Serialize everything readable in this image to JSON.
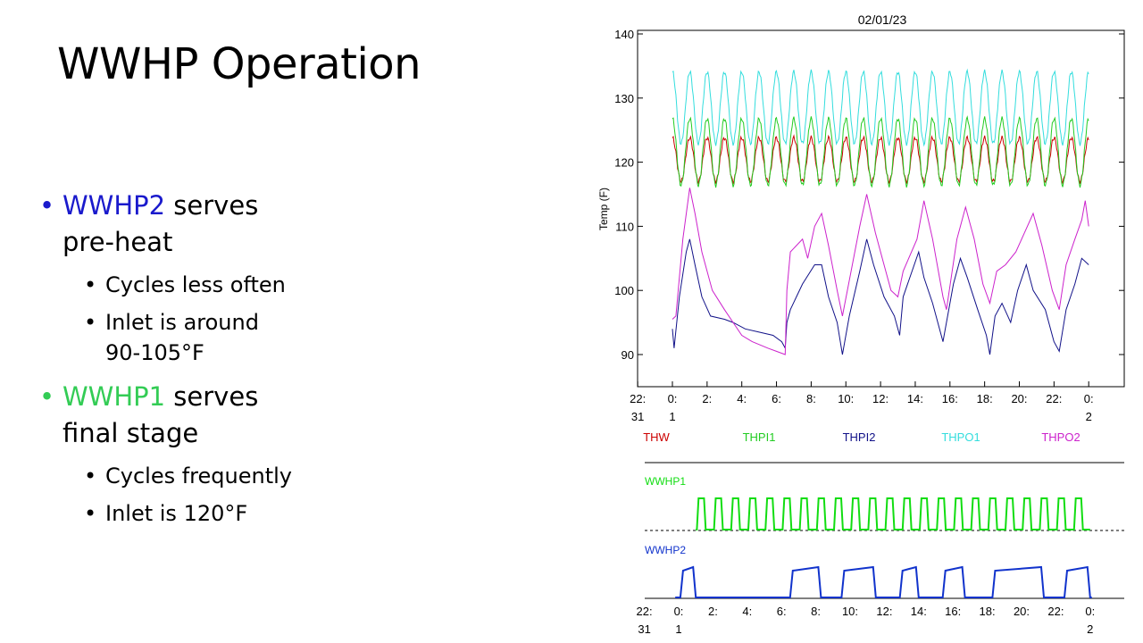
{
  "slide": {
    "title": "WWHP Operation",
    "bullets": [
      {
        "highlight": "WWHP2",
        "highlight_color": "#1a1acc",
        "text_line1": " serves",
        "text_line2": "pre-heat",
        "subs": [
          "Cycles less often",
          "Inlet is around",
          "90-105°F"
        ]
      },
      {
        "highlight": "WWHP1",
        "highlight_color": "#33cc55",
        "text_line1": " serves",
        "text_line2": "final stage",
        "subs": [
          "Cycles frequently",
          "Inlet is 120°F"
        ]
      }
    ]
  },
  "chart_data": [
    {
      "type": "line",
      "title": "02/01/23",
      "xlabel": "",
      "ylabel": "Temp (F)",
      "ylim": [
        87,
        140
      ],
      "yticks": [
        "140",
        "130",
        "120",
        "110",
        "100",
        "90"
      ],
      "xtick_top": [
        "22:",
        "0:",
        "2:",
        "4:",
        "6:",
        "8:",
        "10:",
        "12:",
        "14:",
        "16:",
        "18:",
        "20:",
        "22:",
        "0:"
      ],
      "xtick_bottom": [
        "31",
        "1",
        "2"
      ],
      "xlim_hours": [
        -2,
        24
      ],
      "legend_placement": "below",
      "series": [
        {
          "name": "THW",
          "color": "#cc0000",
          "base": 120.4,
          "amp": 3.4,
          "period": 1.0,
          "start": 0,
          "end": 24
        },
        {
          "name": "THPI1",
          "color": "#22cc22",
          "base": 121.6,
          "amp": 5.2,
          "period": 1.0,
          "start": 0,
          "end": 24
        },
        {
          "name": "THPI2",
          "color": "#111188",
          "points": [
            [
              0,
              94
            ],
            [
              0.1,
              91
            ],
            [
              0.4,
              99
            ],
            [
              0.8,
              106
            ],
            [
              1.0,
              108
            ],
            [
              1.3,
              104
            ],
            [
              1.7,
              99
            ],
            [
              2.2,
              96
            ],
            [
              3.0,
              95.5
            ],
            [
              3.5,
              95
            ],
            [
              4.2,
              94
            ],
            [
              5.0,
              93.5
            ],
            [
              5.8,
              93
            ],
            [
              6.3,
              92
            ],
            [
              6.5,
              91
            ],
            [
              6.6,
              95
            ],
            [
              6.8,
              97
            ],
            [
              7.5,
              101
            ],
            [
              8.2,
              104
            ],
            [
              8.6,
              104
            ],
            [
              9.0,
              99
            ],
            [
              9.5,
              95
            ],
            [
              9.8,
              90
            ],
            [
              10.2,
              96
            ],
            [
              10.8,
              103
            ],
            [
              11.2,
              108
            ],
            [
              11.6,
              104
            ],
            [
              12.2,
              99
            ],
            [
              12.8,
              96
            ],
            [
              13.1,
              93
            ],
            [
              13.3,
              99
            ],
            [
              14.2,
              106
            ],
            [
              14.5,
              102
            ],
            [
              15.0,
              98
            ],
            [
              15.6,
              92
            ],
            [
              16.2,
              101
            ],
            [
              16.6,
              105
            ],
            [
              17.0,
              102
            ],
            [
              17.6,
              97
            ],
            [
              18.1,
              93
            ],
            [
              18.3,
              90
            ],
            [
              18.6,
              96
            ],
            [
              19.0,
              98
            ],
            [
              19.5,
              95
            ],
            [
              19.9,
              100
            ],
            [
              20.4,
              104
            ],
            [
              20.8,
              100
            ],
            [
              21.5,
              97
            ],
            [
              22.0,
              92
            ],
            [
              22.3,
              90.5
            ],
            [
              22.7,
              97
            ],
            [
              23.2,
              101
            ],
            [
              23.6,
              105
            ],
            [
              24.0,
              104
            ]
          ]
        },
        {
          "name": "THPO1",
          "color": "#33dddd",
          "base": 128.5,
          "amp": 5.6,
          "period": 1.0,
          "start": 0,
          "end": 24
        },
        {
          "name": "THPO2",
          "color": "#cc22cc",
          "points": [
            [
              0,
              95.5
            ],
            [
              0.2,
              96
            ],
            [
              0.6,
              108
            ],
            [
              1.0,
              116
            ],
            [
              1.3,
              112
            ],
            [
              1.7,
              106
            ],
            [
              2.3,
              100
            ],
            [
              3.0,
              97
            ],
            [
              3.5,
              95
            ],
            [
              4.0,
              93
            ],
            [
              4.6,
              92
            ],
            [
              5.5,
              91
            ],
            [
              6.0,
              90.5
            ],
            [
              6.5,
              90
            ],
            [
              6.6,
              100
            ],
            [
              6.8,
              106
            ],
            [
              7.5,
              108
            ],
            [
              7.8,
              105
            ],
            [
              8.2,
              110
            ],
            [
              8.6,
              112
            ],
            [
              9.0,
              107
            ],
            [
              9.5,
              100
            ],
            [
              9.8,
              96
            ],
            [
              10.3,
              103
            ],
            [
              10.8,
              110
            ],
            [
              11.2,
              115
            ],
            [
              11.7,
              109
            ],
            [
              12.2,
              104
            ],
            [
              12.6,
              100
            ],
            [
              13.0,
              99
            ],
            [
              13.3,
              103
            ],
            [
              14.1,
              108
            ],
            [
              14.5,
              114
            ],
            [
              15.0,
              108
            ],
            [
              15.6,
              99
            ],
            [
              15.8,
              97
            ],
            [
              16.4,
              108
            ],
            [
              16.9,
              113
            ],
            [
              17.4,
              108
            ],
            [
              17.9,
              101
            ],
            [
              18.3,
              98
            ],
            [
              18.7,
              103
            ],
            [
              19.2,
              104
            ],
            [
              19.8,
              106
            ],
            [
              20.3,
              109
            ],
            [
              20.8,
              112
            ],
            [
              21.3,
              107
            ],
            [
              21.9,
              100
            ],
            [
              22.3,
              97
            ],
            [
              22.7,
              104
            ],
            [
              23.2,
              108
            ],
            [
              23.6,
              111
            ],
            [
              23.8,
              114
            ],
            [
              24.0,
              110
            ]
          ]
        }
      ]
    },
    {
      "type": "line",
      "title": "",
      "xlabel": "",
      "ylabel": "",
      "xtick_top": [
        "22:",
        "0:",
        "2:",
        "4:",
        "6:",
        "8:",
        "10:",
        "12:",
        "14:",
        "16:",
        "18:",
        "20:",
        "22:",
        "0:"
      ],
      "xtick_bottom": [
        "31",
        "1",
        "2"
      ],
      "xlim_hours": [
        -2,
        24
      ],
      "ylim": [
        0,
        1
      ],
      "series": [
        {
          "name": "WWHP1",
          "color": "#11dd11",
          "state": "on_off",
          "cycles_per_hour": 1.0,
          "duty": 0.55,
          "start": 1.0,
          "end": 24
        },
        {
          "name": "WWHP2",
          "color": "#1133cc",
          "state": "on_off",
          "on_intervals": [
            [
              0.1,
              1.0
            ],
            [
              6.5,
              8.3
            ],
            [
              9.5,
              11.5
            ],
            [
              12.9,
              14.0
            ],
            [
              15.4,
              16.7
            ],
            [
              18.3,
              21.3
            ],
            [
              22.5,
              24.0
            ]
          ]
        }
      ]
    }
  ]
}
